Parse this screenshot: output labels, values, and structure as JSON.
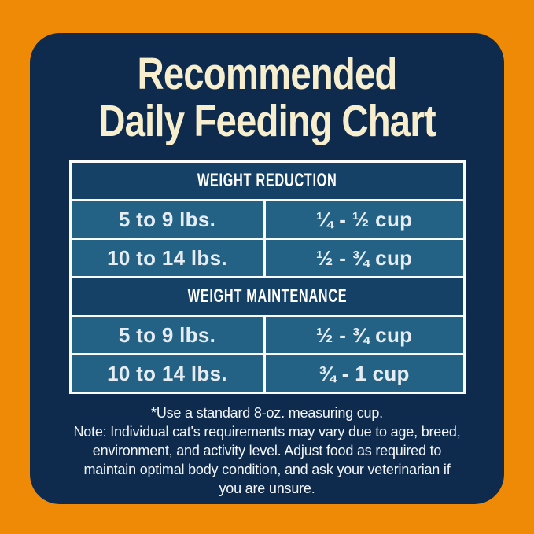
{
  "title": {
    "line1": "Recommended",
    "line2": "Daily Feeding Chart"
  },
  "chart_data": {
    "type": "table",
    "title": "Recommended Daily Feeding Chart",
    "sections": [
      {
        "header": "WEIGHT REDUCTION",
        "rows": [
          [
            "5 to 9 lbs.",
            "¼ - ½ cup"
          ],
          [
            "10 to 14 lbs.",
            "½ - ¾ cup"
          ]
        ]
      },
      {
        "header": "WEIGHT MAINTENANCE",
        "rows": [
          [
            "5 to 9 lbs.",
            "½ - ¾ cup"
          ],
          [
            "10 to 14 lbs.",
            "¾ - 1 cup"
          ]
        ]
      }
    ]
  },
  "footnote": "*Use a standard 8-oz. measuring cup.\nNote: Individual cat's requirements may vary due to age, breed,\nenvironment, and activity level. Adjust food as required to\nmaintain optimal body condition, and ask your veterinarian if\nyou are unsure.",
  "colors": {
    "background_orange": "#EF8A06",
    "panel_navy": "#0E2B4E",
    "section_header_blue": "#154167",
    "row_teal": "#236285",
    "table_border_white": "#FAFBFC",
    "title_cream": "#F6EECD",
    "row_text": "#E6EDF2",
    "footnote_text": "#F3F6F9"
  }
}
